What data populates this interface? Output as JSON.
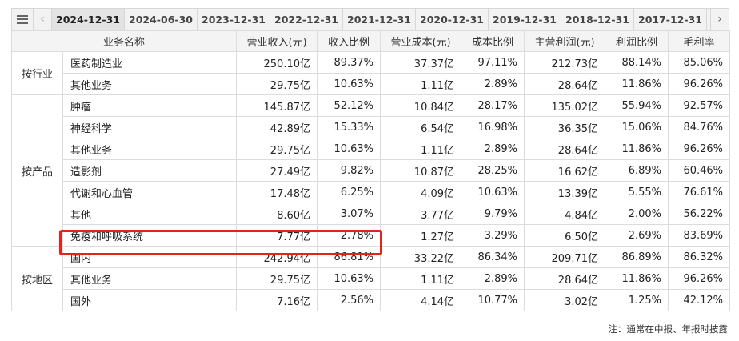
{
  "tabs": [
    "2024-12-31",
    "2024-06-30",
    "2023-12-31",
    "2022-12-31",
    "2021-12-31",
    "2020-12-31",
    "2019-12-31",
    "2018-12-31",
    "2017-12-31"
  ],
  "active_tab": 0,
  "icons": {
    "menu": "menu-icon",
    "prev": "chevron-left-icon",
    "next": "chevron-right-icon"
  },
  "nav": {
    "prev_glyph": "‹",
    "next_glyph": "›"
  },
  "headers": [
    "业务名称",
    "营业收入(元)",
    "收入比例",
    "营业成本(元)",
    "成本比例",
    "主营利润(元)",
    "利润比例",
    "毛利率"
  ],
  "groups": [
    {
      "label": "按行业",
      "rows": [
        [
          "医药制造业",
          "250.10亿",
          "89.37%",
          "37.37亿",
          "97.11%",
          "212.73亿",
          "88.14%",
          "85.06%"
        ],
        [
          "其他业务",
          "29.75亿",
          "10.63%",
          "1.11亿",
          "2.89%",
          "28.64亿",
          "11.86%",
          "96.26%"
        ]
      ]
    },
    {
      "label": "按产品",
      "rows": [
        [
          "肿瘤",
          "145.87亿",
          "52.12%",
          "10.84亿",
          "28.17%",
          "135.02亿",
          "55.94%",
          "92.57%"
        ],
        [
          "神经科学",
          "42.89亿",
          "15.33%",
          "6.54亿",
          "16.98%",
          "36.35亿",
          "15.06%",
          "84.76%"
        ],
        [
          "其他业务",
          "29.75亿",
          "10.63%",
          "1.11亿",
          "2.89%",
          "28.64亿",
          "11.86%",
          "96.26%"
        ],
        [
          "造影剂",
          "27.49亿",
          "9.82%",
          "10.87亿",
          "28.25%",
          "16.62亿",
          "6.89%",
          "60.46%"
        ],
        [
          "代谢和心血管",
          "17.48亿",
          "6.25%",
          "4.09亿",
          "10.63%",
          "13.39亿",
          "5.55%",
          "76.61%"
        ],
        [
          "其他",
          "8.60亿",
          "3.07%",
          "3.77亿",
          "9.79%",
          "4.84亿",
          "2.00%",
          "56.22%"
        ],
        [
          "免疫和呼吸系统",
          "7.77亿",
          "2.78%",
          "1.27亿",
          "3.29%",
          "6.50亿",
          "2.69%",
          "83.69%"
        ]
      ]
    },
    {
      "label": "按地区",
      "rows": [
        [
          "国内",
          "242.94亿",
          "86.81%",
          "33.22亿",
          "86.34%",
          "209.71亿",
          "86.89%",
          "86.32%"
        ],
        [
          "其他业务",
          "29.75亿",
          "10.63%",
          "1.11亿",
          "2.89%",
          "28.64亿",
          "11.86%",
          "96.26%"
        ],
        [
          "国外",
          "7.16亿",
          "2.56%",
          "4.14亿",
          "10.77%",
          "3.02亿",
          "1.25%",
          "42.12%"
        ]
      ]
    }
  ],
  "highlight_color": "#e5231b",
  "note": "注：通常在中报、年报时披露"
}
